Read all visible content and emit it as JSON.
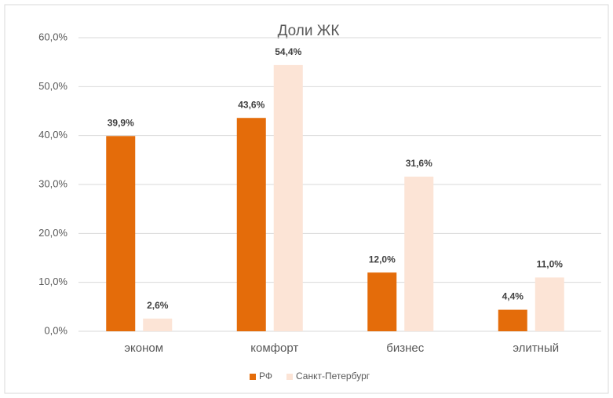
{
  "chart_data": {
    "type": "bar",
    "title": "Доли ЖК",
    "categories": [
      "эконом",
      "комфорт",
      "бизнес",
      "элитный"
    ],
    "series": [
      {
        "name": "РФ",
        "color": "#e46c0a",
        "values": [
          39.9,
          43.6,
          12.0,
          4.4
        ],
        "value_labels": [
          "39,9%",
          "43,6%",
          "12,0%",
          "4,4%"
        ]
      },
      {
        "name": "Санкт-Петербург",
        "color": "#fce4d6",
        "values": [
          2.6,
          54.4,
          31.6,
          11.0
        ],
        "value_labels": [
          "2,6%",
          "54,4%",
          "31,6%",
          "11,0%"
        ]
      }
    ],
    "ylim": [
      0,
      60
    ],
    "yticks": [
      {
        "value": 0,
        "label": "0,0%"
      },
      {
        "value": 10,
        "label": "10,0%"
      },
      {
        "value": 20,
        "label": "20,0%"
      },
      {
        "value": 30,
        "label": "30,0%"
      },
      {
        "value": 40,
        "label": "40,0%"
      },
      {
        "value": 50,
        "label": "50,0%"
      },
      {
        "value": 60,
        "label": "60,0%"
      }
    ],
    "grid": true,
    "legend": "bottom"
  }
}
